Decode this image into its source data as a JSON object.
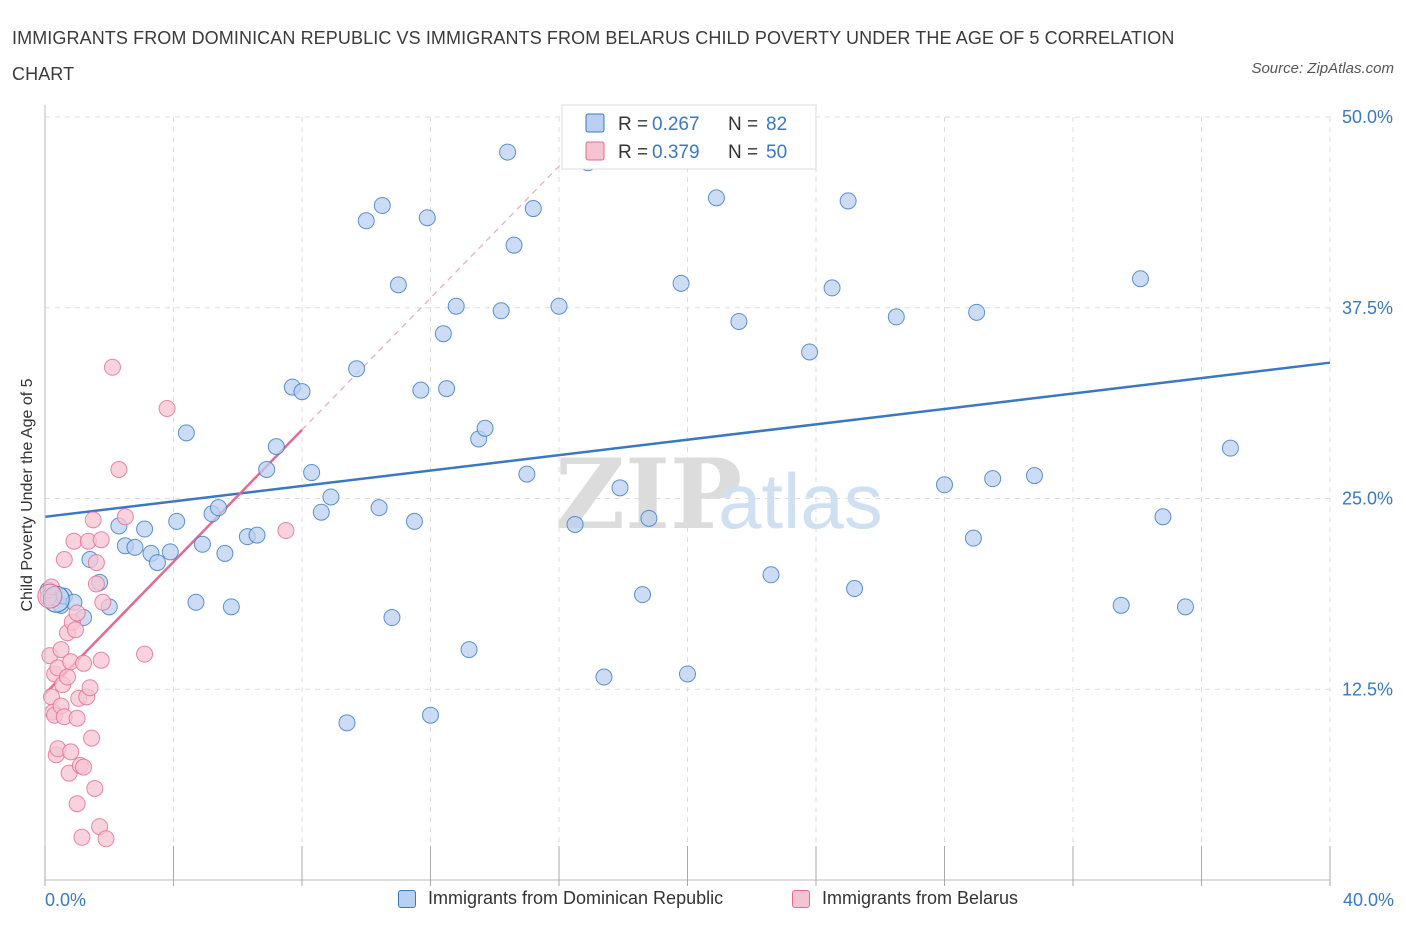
{
  "header": {
    "title": "IMMIGRANTS FROM DOMINICAN REPUBLIC VS IMMIGRANTS FROM BELARUS CHILD POVERTY UNDER THE AGE OF 5 CORRELATION CHART",
    "source": "Source: ZipAtlas.com"
  },
  "colors": {
    "blue": "#3a78c4",
    "blue_fill": "#b9d0f0",
    "pink": "#e46a92",
    "pink_fill": "#f5c4d3",
    "grid": "#dddddd",
    "axis_text": "#3a78c4"
  },
  "chart_data": {
    "type": "scatter",
    "title": "IMMIGRANTS FROM DOMINICAN REPUBLIC VS IMMIGRANTS FROM BELARUS CHILD POVERTY UNDER THE AGE OF 5 CORRELATION CHART",
    "xlabel": "",
    "ylabel": "Child Poverty Under the Age of 5",
    "xlim": [
      0,
      40
    ],
    "ylim": [
      0,
      50
    ],
    "x_tick_labels": [
      "0.0%",
      "40.0%"
    ],
    "y_ticks": [
      12.5,
      25.0,
      37.5,
      50.0
    ],
    "y_tick_labels": [
      "12.5%",
      "25.0%",
      "37.5%",
      "50.0%"
    ],
    "grid": true,
    "legend_position": "top-center",
    "watermark": "ZIPatlas",
    "series": [
      {
        "name": "Immigrants from Dominican Republic",
        "color": "#3a78c4",
        "R": "0.267",
        "N": "82",
        "trend": {
          "x": [
            0,
            40
          ],
          "y": [
            23.8,
            33.9
          ]
        },
        "points": [
          [
            0.3,
            18.5
          ],
          [
            0.5,
            18.0
          ],
          [
            0.6,
            18.6
          ],
          [
            0.9,
            18.2
          ],
          [
            1.2,
            17.2
          ],
          [
            1.4,
            21.0
          ],
          [
            1.7,
            19.5
          ],
          [
            2.0,
            17.9
          ],
          [
            2.3,
            23.2
          ],
          [
            2.5,
            21.9
          ],
          [
            2.8,
            21.8
          ],
          [
            3.1,
            23.0
          ],
          [
            3.3,
            21.4
          ],
          [
            3.5,
            20.8
          ],
          [
            3.9,
            21.5
          ],
          [
            4.1,
            23.5
          ],
          [
            4.4,
            29.3
          ],
          [
            4.7,
            18.2
          ],
          [
            4.9,
            22.0
          ],
          [
            5.2,
            24.0
          ],
          [
            5.4,
            24.4
          ],
          [
            5.6,
            21.4
          ],
          [
            5.8,
            17.9
          ],
          [
            6.3,
            22.5
          ],
          [
            6.6,
            22.6
          ],
          [
            6.9,
            26.9
          ],
          [
            7.2,
            28.4
          ],
          [
            7.7,
            32.3
          ],
          [
            8.0,
            32.0
          ],
          [
            8.3,
            26.7
          ],
          [
            8.6,
            24.1
          ],
          [
            8.9,
            25.1
          ],
          [
            9.4,
            10.3
          ],
          [
            9.7,
            33.5
          ],
          [
            10.0,
            43.2
          ],
          [
            10.4,
            24.4
          ],
          [
            10.5,
            44.2
          ],
          [
            10.8,
            17.2
          ],
          [
            11.0,
            39.0
          ],
          [
            11.5,
            23.5
          ],
          [
            11.7,
            32.1
          ],
          [
            11.9,
            43.4
          ],
          [
            12.0,
            10.8
          ],
          [
            12.4,
            35.8
          ],
          [
            12.5,
            32.2
          ],
          [
            12.8,
            37.6
          ],
          [
            13.2,
            15.1
          ],
          [
            13.5,
            28.9
          ],
          [
            13.7,
            29.6
          ],
          [
            14.2,
            37.3
          ],
          [
            14.4,
            47.7
          ],
          [
            14.6,
            41.6
          ],
          [
            15.0,
            26.6
          ],
          [
            15.2,
            44.0
          ],
          [
            16.0,
            37.6
          ],
          [
            16.5,
            23.3
          ],
          [
            16.9,
            47.0
          ],
          [
            17.4,
            13.3
          ],
          [
            17.9,
            25.7
          ],
          [
            18.6,
            18.7
          ],
          [
            18.8,
            23.7
          ],
          [
            19.8,
            39.1
          ],
          [
            20.0,
            13.5
          ],
          [
            20.9,
            44.7
          ],
          [
            21.6,
            36.6
          ],
          [
            22.6,
            20.0
          ],
          [
            23.8,
            34.6
          ],
          [
            24.5,
            38.8
          ],
          [
            25.0,
            44.5
          ],
          [
            25.2,
            19.1
          ],
          [
            26.5,
            36.9
          ],
          [
            28.0,
            25.9
          ],
          [
            28.9,
            22.4
          ],
          [
            29.0,
            37.2
          ],
          [
            29.5,
            26.3
          ],
          [
            30.8,
            26.5
          ],
          [
            33.5,
            18.0
          ],
          [
            34.1,
            39.4
          ],
          [
            34.8,
            23.8
          ],
          [
            35.5,
            17.9
          ],
          [
            36.9,
            28.3
          ],
          [
            0.1,
            19.0
          ]
        ]
      },
      {
        "name": "Immigrants from Belarus",
        "color": "#e46a92",
        "R": "0.379",
        "N": "50",
        "trend": {
          "x": [
            0,
            8.0
          ],
          "y": [
            12.2,
            29.5
          ]
        },
        "trend_extension": {
          "x": [
            8.0,
            16.8
          ],
          "y": [
            29.5,
            48.5
          ]
        },
        "points": [
          [
            0.1,
            18.5
          ],
          [
            0.15,
            14.7
          ],
          [
            0.2,
            12.0
          ],
          [
            0.25,
            11.0
          ],
          [
            0.3,
            13.5
          ],
          [
            0.3,
            10.8
          ],
          [
            0.35,
            8.2
          ],
          [
            0.4,
            8.6
          ],
          [
            0.4,
            13.9
          ],
          [
            0.5,
            11.4
          ],
          [
            0.5,
            15.1
          ],
          [
            0.55,
            12.8
          ],
          [
            0.6,
            10.7
          ],
          [
            0.6,
            21.0
          ],
          [
            0.7,
            16.2
          ],
          [
            0.7,
            13.3
          ],
          [
            0.75,
            7.0
          ],
          [
            0.8,
            14.3
          ],
          [
            0.8,
            8.4
          ],
          [
            0.85,
            16.9
          ],
          [
            0.9,
            22.2
          ],
          [
            0.95,
            16.4
          ],
          [
            1.0,
            5.0
          ],
          [
            1.0,
            10.6
          ],
          [
            1.05,
            11.9
          ],
          [
            1.1,
            7.5
          ],
          [
            1.15,
            2.8
          ],
          [
            1.2,
            7.4
          ],
          [
            1.2,
            14.2
          ],
          [
            1.3,
            12.0
          ],
          [
            1.35,
            22.2
          ],
          [
            1.4,
            12.6
          ],
          [
            1.45,
            9.3
          ],
          [
            1.5,
            23.6
          ],
          [
            1.55,
            6.0
          ],
          [
            1.6,
            19.4
          ],
          [
            1.6,
            20.8
          ],
          [
            1.7,
            3.5
          ],
          [
            1.75,
            22.3
          ],
          [
            1.75,
            14.4
          ],
          [
            1.8,
            18.2
          ],
          [
            1.9,
            2.7
          ],
          [
            2.1,
            33.6
          ],
          [
            2.3,
            26.9
          ],
          [
            2.5,
            23.8
          ],
          [
            3.1,
            14.8
          ],
          [
            3.8,
            30.9
          ],
          [
            7.5,
            22.9
          ],
          [
            0.2,
            19.2
          ],
          [
            1.0,
            17.5
          ]
        ]
      }
    ]
  },
  "legend_top": {
    "rows": [
      {
        "r_label": "R = ",
        "r_value": "0.267",
        "n_label": "N = ",
        "n_value": "82"
      },
      {
        "r_label": "R = ",
        "r_value": "0.379",
        "n_label": "N = ",
        "n_value": "50"
      }
    ]
  },
  "legend_bottom": {
    "items": [
      "Immigrants from Dominican Republic",
      "Immigrants from Belarus"
    ]
  }
}
